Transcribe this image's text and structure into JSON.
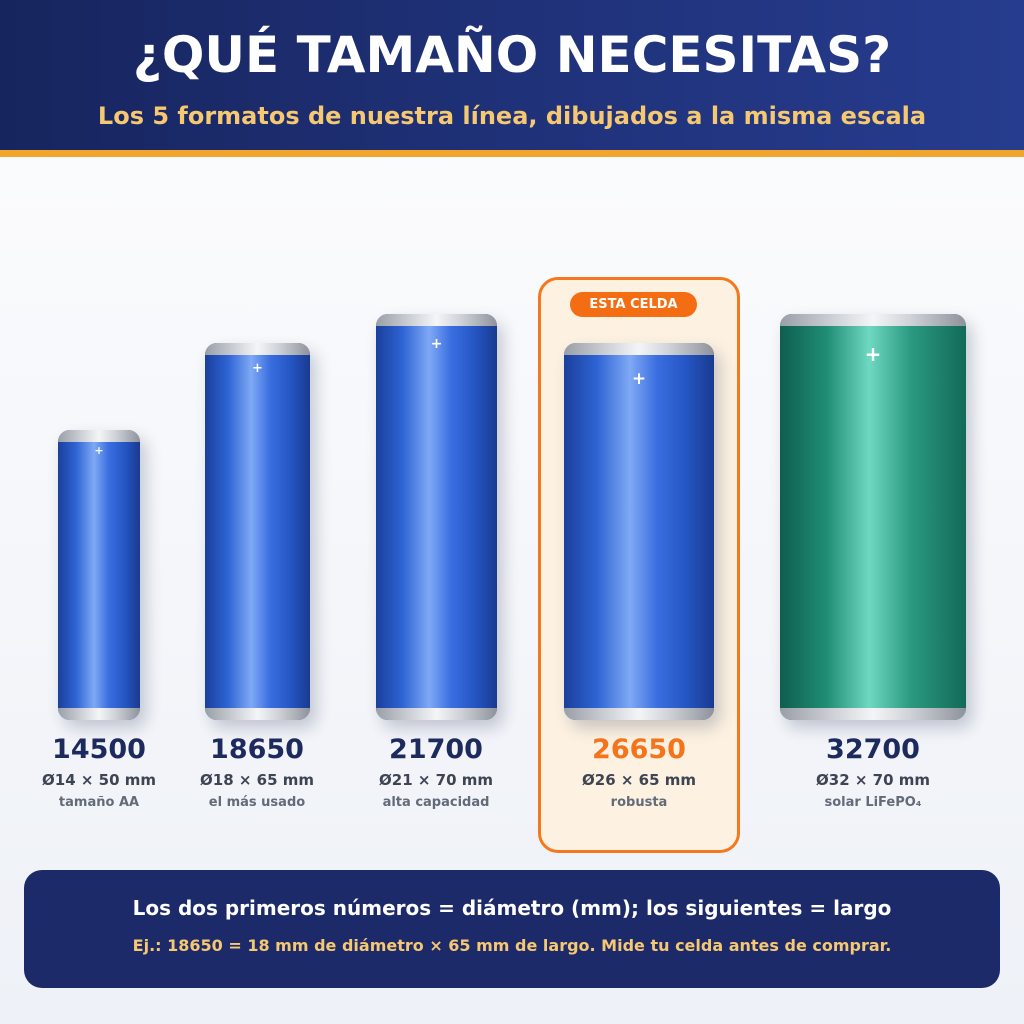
{
  "header": {
    "title": "¿QUÉ TAMAÑO NECESITAS?",
    "subtitle": "Los 5 formatos de nuestra línea, dibujados a la misma escala"
  },
  "highlight": {
    "badge": "ESTA CELDA"
  },
  "cells": [
    {
      "code": "14500",
      "dimensions": "Ø14 × 50 mm",
      "note": "tamaño AA",
      "diameter_mm": 14,
      "length_mm": 50,
      "color": "#2e64d4",
      "terminal": "+"
    },
    {
      "code": "18650",
      "dimensions": "Ø18 × 65 mm",
      "note": "el más usado",
      "diameter_mm": 18,
      "length_mm": 65,
      "color": "#2e64d4",
      "terminal": "+"
    },
    {
      "code": "21700",
      "dimensions": "Ø21 × 70 mm",
      "note": "alta capacidad",
      "diameter_mm": 21,
      "length_mm": 70,
      "color": "#2e64d4",
      "terminal": "+"
    },
    {
      "code": "26650",
      "dimensions": "Ø26 × 65 mm",
      "note": "robusta",
      "diameter_mm": 26,
      "length_mm": 65,
      "color": "#2e64d4",
      "terminal": "+",
      "highlighted": true
    },
    {
      "code": "32700",
      "dimensions": "Ø32 × 70 mm",
      "note": "solar LiFePO₄",
      "diameter_mm": 32,
      "length_mm": 70,
      "color": "#1f8d74",
      "terminal": "+"
    }
  ],
  "footer": {
    "line1": "Los dos primeros números = diámetro (mm); los siguientes = largo",
    "line2": "Ej.: 18650 = 18 mm de diámetro × 65 mm de largo. Mide tu celda antes de comprar."
  },
  "colors": {
    "header_bg": "#1f3178",
    "accent_gold": "#f2a52c",
    "highlight_orange": "#f5781e",
    "cell_blue": "#2e64d4",
    "cell_green": "#1f8d74",
    "footer_bg": "#1c2a6a"
  }
}
